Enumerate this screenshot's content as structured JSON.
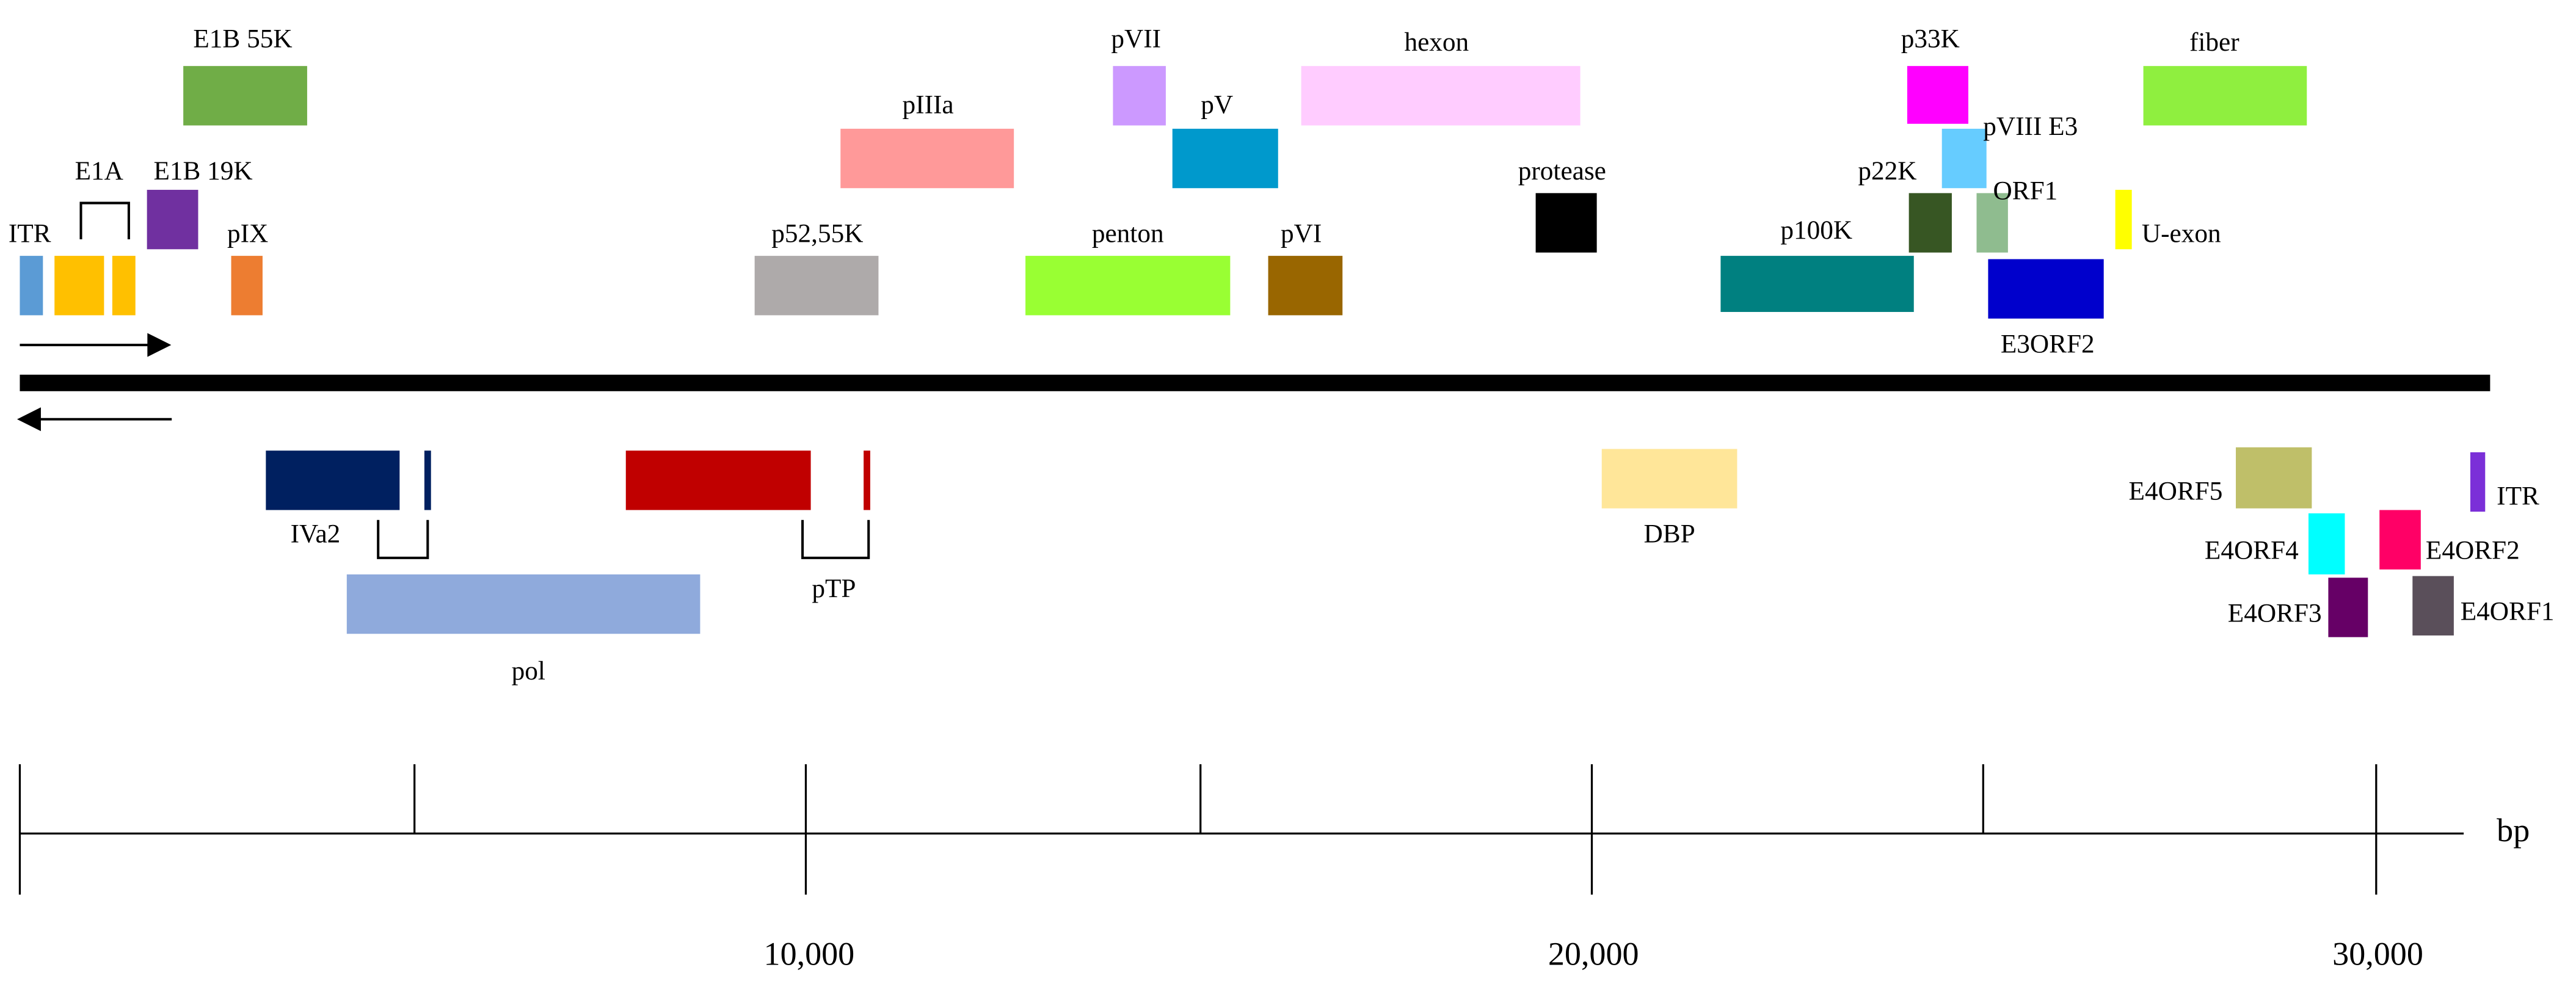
{
  "forward": [
    {
      "label": "ITR",
      "color": "#5b9bd5"
    },
    {
      "label": "E1A",
      "color": "#ffc000"
    },
    {
      "label": "E1B 19K",
      "color": "#7030a0"
    },
    {
      "label": "E1B 55K",
      "color": "#70ad47"
    },
    {
      "label": "pIX",
      "color": "#ed7d31"
    },
    {
      "label": "p52,55K",
      "color": "#aeaaaa"
    },
    {
      "label": "pIIIa",
      "color": "#ff9999"
    },
    {
      "label": "penton",
      "color": "#99ff33"
    },
    {
      "label": "pVII",
      "color": "#cc99ff"
    },
    {
      "label": "pV",
      "color": "#0099cc"
    },
    {
      "label": "pVI",
      "color": "#996600"
    },
    {
      "label": "hexon",
      "color": "#ffccff"
    },
    {
      "label": "protease",
      "color": "#000000"
    },
    {
      "label": "p100K",
      "color": "#008080"
    },
    {
      "label": "p22K",
      "color": "#375623"
    },
    {
      "label": "p33K",
      "color": "#ff00ff"
    },
    {
      "label": "pVIII E3",
      "color": "#66ccff"
    },
    {
      "label": "ORF1",
      "color": "#8fbc8f"
    },
    {
      "label": "E3ORF2",
      "color": "#0000cc"
    },
    {
      "label": "U-exon",
      "color": "#ffff00"
    },
    {
      "label": "fiber",
      "color": "#8fef3f"
    }
  ],
  "reverse": [
    {
      "label": "IVa2",
      "color": "#002060"
    },
    {
      "label": "pol",
      "color": "#8faadc"
    },
    {
      "label": "pTP",
      "color": "#c00000"
    },
    {
      "label": "DBP",
      "color": "#ffe699"
    },
    {
      "label": "E4ORF5",
      "color": "#bfbf69"
    },
    {
      "label": "ITR",
      "color": "#7b2fd8"
    },
    {
      "label": "E4ORF4",
      "color": "#00ffff"
    },
    {
      "label": "E4ORF2",
      "color": "#ff0066"
    },
    {
      "label": "E4ORF3",
      "color": "#660066"
    },
    {
      "label": "E4ORF1",
      "color": "#5a4f5a"
    }
  ],
  "axis": {
    "tick_labels": [
      "10,000",
      "20,000",
      "30,000"
    ],
    "unit": "bp"
  }
}
